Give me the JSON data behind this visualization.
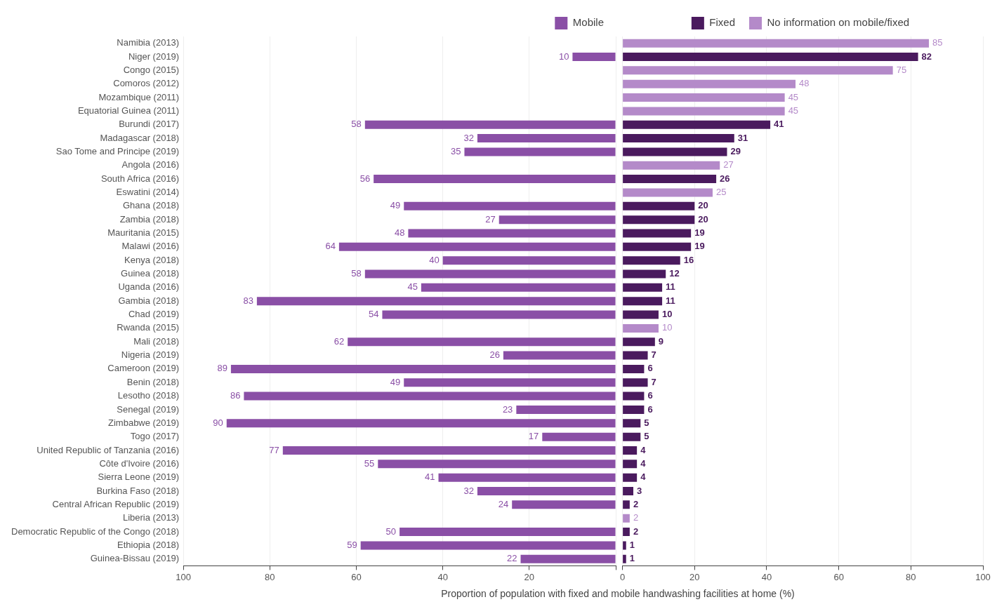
{
  "chart_data": [
    {
      "type": "bar",
      "orientation": "horizontal",
      "xlabel": "Proportion of population with fixed and mobile handwashing facilities at home (%)",
      "categories": [
        "Namibia (2013)",
        "Niger (2019)",
        "Congo (2015)",
        "Comoros (2012)",
        "Mozambique (2011)",
        "Equatorial Guinea (2011)",
        "Burundi (2017)",
        "Madagascar (2018)",
        "Sao Tome and Principe (2019)",
        "Angola (2016)",
        "South Africa (2016)",
        "Eswatini (2014)",
        "Ghana (2018)",
        "Zambia (2018)",
        "Mauritania (2015)",
        "Malawi (2016)",
        "Kenya (2018)",
        "Guinea (2018)",
        "Uganda (2016)",
        "Gambia (2018)",
        "Chad (2019)",
        "Rwanda (2015)",
        "Mali (2018)",
        "Nigeria (2019)",
        "Cameroon (2019)",
        "Benin (2018)",
        "Lesotho (2018)",
        "Senegal (2019)",
        "Zimbabwe (2019)",
        "Togo (2017)",
        "United Republic of Tanzania (2016)",
        "Côte d'Ivoire (2016)",
        "Sierra Leone (2019)",
        "Burkina Faso (2018)",
        "Central African Republic (2019)",
        "Liberia (2013)",
        "Democratic Republic of the Congo (2018)",
        "Ethiopia (2018)",
        "Guinea-Bissau (2019)"
      ],
      "series": [
        {
          "name": "Mobile",
          "color": "#8a4fa6",
          "values": [
            null,
            10,
            null,
            null,
            null,
            null,
            58,
            32,
            35,
            null,
            56,
            null,
            49,
            27,
            48,
            64,
            40,
            58,
            45,
            83,
            54,
            null,
            62,
            26,
            89,
            49,
            86,
            23,
            90,
            17,
            77,
            55,
            41,
            32,
            24,
            null,
            50,
            59,
            22
          ]
        }
      ],
      "xlim": [
        100,
        0
      ],
      "xticks": [
        100,
        80,
        60,
        40,
        20,
        {
          "value": 0,
          "label": null
        }
      ],
      "data_labels": true,
      "grid": "x",
      "legend": "top right"
    },
    {
      "type": "bar",
      "orientation": "horizontal",
      "stacked": true,
      "tick_labels": "x",
      "categories": [
        null,
        null,
        null,
        null,
        null,
        null,
        null,
        null,
        null,
        null,
        null,
        null,
        null,
        null,
        null,
        null,
        null,
        null,
        null,
        null,
        null,
        null,
        null,
        null,
        null,
        null,
        null,
        null,
        null,
        null,
        null,
        null,
        null,
        null,
        null,
        null,
        null,
        null,
        null
      ],
      "series": [
        {
          "name": "Fixed",
          "color": "#4a1a5e",
          "values": [
            null,
            82,
            null,
            null,
            null,
            null,
            41,
            31,
            29,
            null,
            26,
            null,
            20,
            20,
            19,
            19,
            16,
            12,
            11,
            11,
            10,
            null,
            9,
            7,
            6,
            7,
            6,
            6,
            5,
            5,
            4,
            4,
            4,
            3,
            2,
            null,
            2,
            1,
            1
          ]
        },
        {
          "name": "No information on mobile/fixed",
          "color": "#b48ac9",
          "values": [
            85,
            null,
            75,
            48,
            45,
            45,
            null,
            null,
            null,
            27,
            null,
            25,
            null,
            null,
            null,
            null,
            null,
            null,
            null,
            null,
            null,
            10,
            null,
            null,
            null,
            null,
            null,
            null,
            null,
            null,
            null,
            null,
            null,
            null,
            null,
            2,
            null,
            null,
            null
          ]
        }
      ],
      "xlim": [
        0,
        100
      ],
      "xticks": [
        0,
        20,
        40,
        60,
        80,
        100
      ],
      "data_labels": true,
      "grid": "x",
      "legend": "top"
    }
  ]
}
